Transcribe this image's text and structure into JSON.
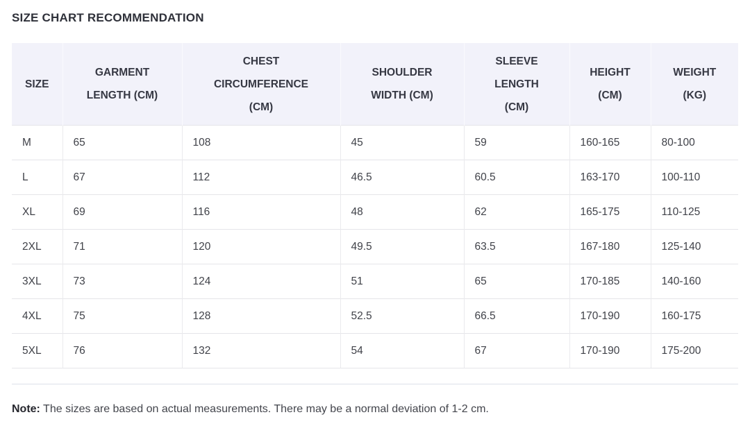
{
  "page": {
    "title": "SIZE CHART RECOMMENDATION",
    "note": {
      "label": "Note:",
      "text": " The sizes are based on actual measurements. There may be a normal deviation of 1-2 cm."
    }
  },
  "size_chart": {
    "columns": [
      {
        "key": "size",
        "label": "SIZE"
      },
      {
        "key": "garment_length",
        "label": "GARMENT\nLENGTH (CM)"
      },
      {
        "key": "chest_circumference",
        "label": "CHEST\nCIRCUMFERENCE\n(CM)"
      },
      {
        "key": "shoulder_width",
        "label": "SHOULDER\nWIDTH (CM)"
      },
      {
        "key": "sleeve_length",
        "label": "SLEEVE\nLENGTH\n(CM)"
      },
      {
        "key": "height",
        "label": "HEIGHT\n(CM)"
      },
      {
        "key": "weight",
        "label": "WEIGHT\n(KG)"
      }
    ],
    "rows": [
      {
        "size": "M",
        "garment_length": "65",
        "chest_circumference": "108",
        "shoulder_width": "45",
        "sleeve_length": "59",
        "height": "160-165",
        "weight": "80-100"
      },
      {
        "size": "L",
        "garment_length": "67",
        "chest_circumference": "112",
        "shoulder_width": "46.5",
        "sleeve_length": "60.5",
        "height": "163-170",
        "weight": "100-110"
      },
      {
        "size": "XL",
        "garment_length": "69",
        "chest_circumference": "116",
        "shoulder_width": "48",
        "sleeve_length": "62",
        "height": "165-175",
        "weight": "110-125"
      },
      {
        "size": "2XL",
        "garment_length": "71",
        "chest_circumference": "120",
        "shoulder_width": "49.5",
        "sleeve_length": "63.5",
        "height": "167-180",
        "weight": "125-140"
      },
      {
        "size": "3XL",
        "garment_length": "73",
        "chest_circumference": "124",
        "shoulder_width": "51",
        "sleeve_length": "65",
        "height": "170-185",
        "weight": "140-160"
      },
      {
        "size": "4XL",
        "garment_length": "75",
        "chest_circumference": "128",
        "shoulder_width": "52.5",
        "sleeve_length": "66.5",
        "height": "170-190",
        "weight": "160-175"
      },
      {
        "size": "5XL",
        "garment_length": "76",
        "chest_circumference": "132",
        "shoulder_width": "54",
        "sleeve_length": "67",
        "height": "170-190",
        "weight": "175-200"
      }
    ]
  },
  "colors": {
    "header_background": "#f2f2fa",
    "row_border": "#e5e5e9",
    "divider": "#dde0ea",
    "title_text": "#2f313a",
    "body_text": "#404249"
  }
}
